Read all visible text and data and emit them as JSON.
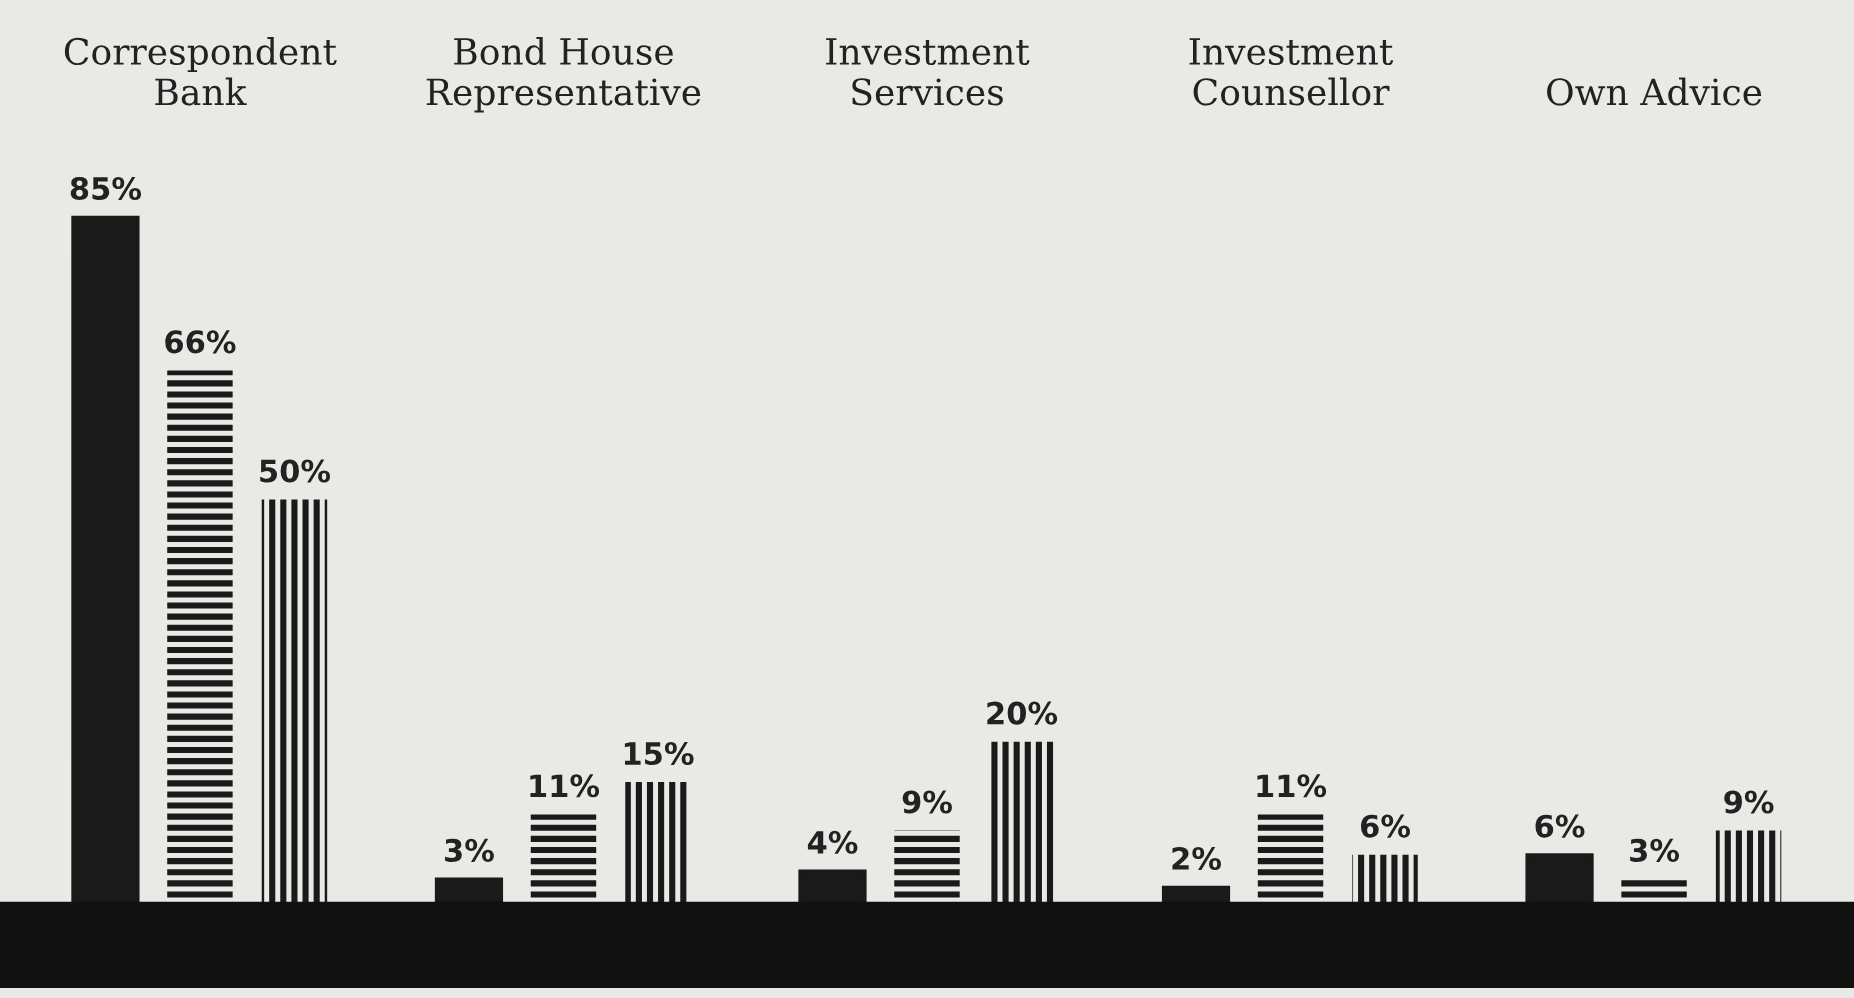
{
  "chart_data": {
    "type": "bar",
    "categories": [
      "Correspondent\nBank",
      "Bond House\nRepresentative",
      "Investment\nServices",
      "Investment\nCounsellor",
      "Own Advice"
    ],
    "series": [
      {
        "color": "#1a1a1a",
        "values": [
          85,
          3,
          4,
          2,
          6
        ],
        "value_labels": [
          "85%",
          "3%",
          "4%",
          "2%",
          "6%"
        ]
      },
      {
        "color": "#1a1a1a",
        "values": [
          66,
          11,
          9,
          11,
          3
        ],
        "value_labels": [
          "66%",
          "11%",
          "9%",
          "11%",
          "3%"
        ]
      },
      {
        "color": "#1a1a1a",
        "values": [
          50,
          15,
          20,
          6,
          9
        ],
        "value_labels": [
          "50%",
          "15%",
          "20%",
          "6%",
          "9%"
        ]
      }
    ],
    "grid": false,
    "legend": false
  }
}
